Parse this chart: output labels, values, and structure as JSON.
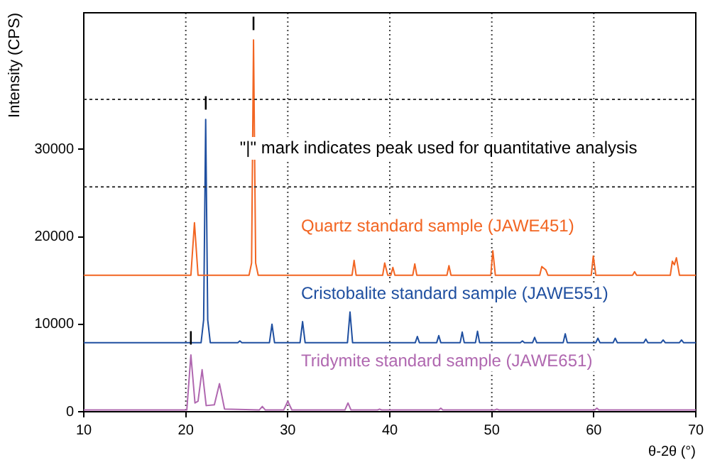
{
  "chart_data": {
    "type": "line",
    "xlabel": "θ-2θ (°)",
    "ylabel": "Intensity (CPS)",
    "xlim": [
      10,
      70
    ],
    "xticks": [
      10,
      20,
      30,
      40,
      50,
      60,
      70
    ],
    "ylim": [
      0,
      45600
    ],
    "yticks": [
      0,
      10000,
      20000,
      30000
    ],
    "grid": "x",
    "legend": false,
    "marker": "none",
    "line_style": "solid",
    "ref_lines": [
      {
        "axis": "y",
        "value": 25700,
        "line_style": "dotted"
      },
      {
        "axis": "y",
        "value": 35700,
        "line_style": "dotted"
      }
    ],
    "annotations": [
      "\"|\" mark indicates peak used for quantitative analysis",
      {
        "text": "|",
        "x": 26.64,
        "y": 42500
      },
      {
        "text": "|",
        "x": 21.95,
        "y": 33400
      },
      {
        "text": "|",
        "x": 20.5,
        "y": 6500
      }
    ],
    "series": [
      {
        "name": "Quartz standard sample (JAWE451)",
        "color": "#f26522",
        "x": [
          10,
          20.5,
          20.85,
          21.2,
          26.2,
          26.45,
          26.64,
          26.85,
          27.1,
          36.3,
          36.5,
          36.7,
          39.3,
          39.5,
          39.8,
          40.1,
          40.3,
          40.5,
          42.25,
          42.45,
          42.65,
          45.6,
          45.8,
          46.0,
          49.9,
          50.1,
          50.35,
          54.7,
          54.9,
          55.3,
          55.5,
          59.75,
          59.95,
          60.2,
          63.8,
          64.0,
          64.2,
          67.5,
          67.7,
          67.9,
          68.1,
          68.4,
          70
        ],
        "values": [
          15600,
          15600,
          21600,
          15600,
          15600,
          17000,
          42500,
          17000,
          15600,
          15600,
          17300,
          15600,
          15600,
          17000,
          15600,
          15600,
          16500,
          15600,
          15600,
          16900,
          15600,
          15600,
          16700,
          15600,
          15600,
          18400,
          15600,
          15600,
          16600,
          16200,
          15600,
          15600,
          17800,
          15600,
          15600,
          16000,
          15600,
          15600,
          17200,
          16800,
          17600,
          15600,
          15600
        ]
      },
      {
        "name": "Cristobalite standard sample (JAWE551)",
        "color": "#1f4fa0",
        "x": [
          10,
          21.5,
          21.75,
          21.95,
          22.15,
          22.4,
          25.1,
          25.3,
          25.5,
          28.2,
          28.45,
          28.7,
          31.2,
          31.45,
          31.7,
          35.85,
          36.1,
          36.35,
          42.5,
          42.7,
          42.9,
          44.6,
          44.8,
          45.0,
          46.9,
          47.1,
          47.3,
          48.4,
          48.6,
          48.8,
          52.8,
          53.0,
          53.2,
          54.0,
          54.2,
          54.4,
          57.0,
          57.2,
          57.4,
          60.2,
          60.4,
          60.6,
          61.9,
          62.1,
          62.3,
          64.9,
          65.1,
          65.3,
          66.6,
          66.8,
          67.0,
          68.4,
          68.6,
          68.8,
          70
        ],
        "values": [
          7900,
          7900,
          10500,
          33400,
          10500,
          7900,
          7900,
          8100,
          7900,
          7900,
          10000,
          7900,
          7900,
          10300,
          7900,
          7900,
          11400,
          7900,
          7900,
          8600,
          7900,
          7900,
          8700,
          7900,
          7900,
          9100,
          7900,
          7900,
          9200,
          7900,
          7900,
          8100,
          7900,
          7900,
          8500,
          7900,
          7900,
          8900,
          7900,
          7900,
          8400,
          7900,
          7900,
          8400,
          7900,
          7900,
          8300,
          7900,
          7900,
          8200,
          7900,
          7900,
          8200,
          7900,
          7900
        ]
      },
      {
        "name": "Tridymite standard sample (JAWE651)",
        "color": "#b068b0",
        "x": [
          10,
          20.1,
          20.5,
          20.9,
          21.2,
          21.6,
          22.0,
          22.8,
          23.3,
          23.8,
          27.2,
          27.5,
          27.8,
          29.6,
          30.0,
          30.4,
          35.6,
          35.9,
          36.2,
          38.8,
          39.0,
          39.2,
          44.8,
          45.0,
          45.2,
          50.3,
          50.5,
          50.7,
          60.1,
          60.3,
          60.5,
          70
        ],
        "values": [
          200,
          200,
          6500,
          1000,
          1200,
          4800,
          700,
          800,
          3200,
          300,
          200,
          600,
          200,
          200,
          1200,
          200,
          200,
          1000,
          200,
          200,
          300,
          200,
          200,
          400,
          200,
          200,
          300,
          200,
          200,
          400,
          200,
          200
        ]
      }
    ]
  }
}
